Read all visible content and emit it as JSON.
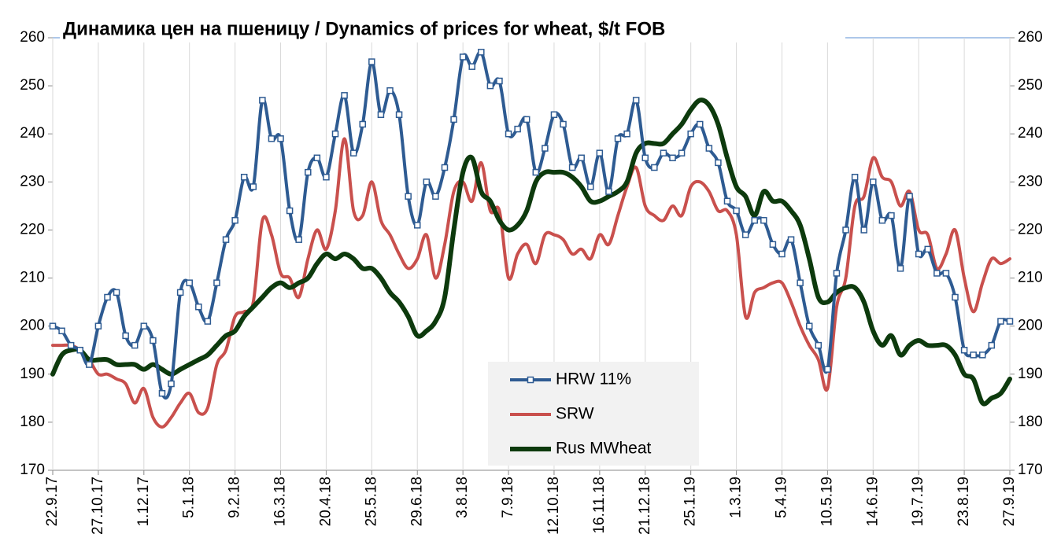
{
  "chart_data": {
    "type": "line",
    "title": "Динамика цен на пшеницу / Dynamics of prices for wheat, $/t FOB",
    "categories": [
      "22.9.17",
      null,
      null,
      null,
      null,
      "27.10.17",
      null,
      null,
      null,
      null,
      "1.12.17",
      null,
      null,
      null,
      null,
      "5.1.18",
      null,
      null,
      null,
      null,
      "9.2.18",
      null,
      null,
      null,
      null,
      "16.3.18",
      null,
      null,
      null,
      null,
      "20.4.18",
      null,
      null,
      null,
      null,
      "25.5.18",
      null,
      null,
      null,
      null,
      "29.6.18",
      null,
      null,
      null,
      null,
      "3.8.18",
      null,
      null,
      null,
      null,
      "7.9.18",
      null,
      null,
      null,
      null,
      "12.10.18",
      null,
      null,
      null,
      null,
      "16.11.18",
      null,
      null,
      null,
      null,
      "21.12.18",
      null,
      null,
      null,
      null,
      "25.1.19",
      null,
      null,
      null,
      null,
      "1.3.19",
      null,
      null,
      null,
      null,
      "5.4.19",
      null,
      null,
      null,
      null,
      "10.5.19",
      null,
      null,
      null,
      null,
      "14.6.19",
      null,
      null,
      null,
      null,
      "19.7.19",
      null,
      null,
      null,
      null,
      "23.8.19",
      null,
      null,
      null,
      null,
      "27.9.19"
    ],
    "series": [
      {
        "name": "HRW 11%",
        "color": "#2e5b92",
        "markers": true,
        "values": [
          200,
          199,
          196,
          195,
          192,
          200,
          206,
          207,
          198,
          196,
          200,
          197,
          186,
          188,
          207,
          209,
          204,
          201,
          209,
          218,
          222,
          231,
          229,
          247,
          239,
          239,
          224,
          218,
          232,
          235,
          231,
          240,
          248,
          236,
          242,
          255,
          244,
          249,
          244,
          227,
          221,
          230,
          227,
          233,
          243,
          256,
          254,
          257,
          250,
          251,
          240,
          241,
          243,
          232,
          237,
          244,
          242,
          233,
          235,
          229,
          236,
          228,
          239,
          240,
          247,
          235,
          233,
          236,
          235,
          236,
          240,
          242,
          237,
          234,
          226,
          224,
          219,
          222,
          222,
          217,
          215,
          218,
          209,
          200,
          196,
          191,
          211,
          220,
          231,
          220,
          230,
          222,
          223,
          212,
          227,
          215,
          216,
          211,
          211,
          206,
          195,
          194,
          194,
          196,
          201,
          201
        ]
      },
      {
        "name": "SRW",
        "color": "#c9504d",
        "values": [
          196,
          196,
          196,
          195,
          193,
          190,
          190,
          189,
          188,
          184,
          187,
          181,
          179,
          181,
          184,
          186,
          182,
          183,
          192,
          195,
          202,
          203,
          205,
          222,
          219,
          211,
          210,
          206,
          214,
          220,
          216,
          224,
          239,
          224,
          223,
          230,
          222,
          219,
          215,
          212,
          214,
          219,
          210,
          217,
          228,
          230,
          226,
          234,
          224,
          224,
          210,
          215,
          217,
          213,
          219,
          219,
          218,
          215,
          216,
          214,
          219,
          217,
          223,
          229,
          233,
          225,
          223,
          222,
          225,
          223,
          229,
          230,
          228,
          224,
          224,
          219,
          202,
          207,
          208,
          209,
          209,
          205,
          200,
          196,
          193,
          187,
          204,
          210,
          225,
          227,
          235,
          231,
          230,
          225,
          228,
          220,
          219,
          212,
          215,
          220,
          210,
          203,
          209,
          214,
          213,
          214
        ]
      },
      {
        "name": "Rus MWheat",
        "color": "#0d3a0d",
        "width": 6,
        "values": [
          190,
          194,
          195,
          195,
          193,
          193,
          193,
          192,
          192,
          192,
          191,
          192,
          191,
          190,
          191,
          192,
          193,
          194,
          196,
          198,
          199,
          202,
          204,
          206,
          208,
          209,
          208,
          209,
          210,
          213,
          215,
          214,
          215,
          214,
          212,
          212,
          210,
          207,
          205,
          202,
          198,
          199,
          201,
          206,
          220,
          232,
          235,
          228,
          226,
          222,
          220,
          221,
          224,
          230,
          232,
          232,
          232,
          231,
          229,
          226,
          226,
          227,
          228,
          230,
          236,
          238,
          238,
          238,
          240,
          242,
          245,
          247,
          246,
          242,
          235,
          229,
          227,
          223,
          228,
          226,
          226,
          224,
          221,
          214,
          206,
          205,
          207,
          208,
          208,
          205,
          199,
          196,
          198,
          194,
          196,
          197,
          196,
          196,
          196,
          194,
          190,
          189,
          184,
          185,
          186,
          189
        ]
      }
    ],
    "ylim": [
      170,
      260
    ],
    "yticks": [
      170,
      180,
      190,
      200,
      210,
      220,
      230,
      240,
      250,
      260
    ],
    "y2lim": [
      170,
      260
    ],
    "y2ticks": [
      170,
      180,
      190,
      200,
      210,
      220,
      230,
      240,
      250,
      260
    ],
    "grid": "x",
    "legend": "bottom-center"
  }
}
